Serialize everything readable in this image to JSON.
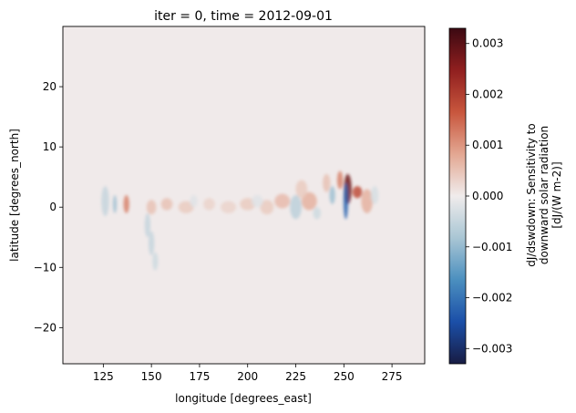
{
  "chart_data": {
    "type": "heatmap",
    "title": "iter = 0, time = 2012-09-01",
    "xlabel": "longitude [degrees_east]",
    "ylabel": "latitude [degrees_north]",
    "xlim": [
      104,
      292
    ],
    "ylim": [
      -26,
      30
    ],
    "xticks": [
      125,
      150,
      175,
      200,
      225,
      250,
      275
    ],
    "yticks": [
      -20,
      -10,
      0,
      10,
      20
    ],
    "grid": false,
    "colorbar": {
      "label_lines": [
        "dJ/dswdown: Sensitivity to",
        "downward solar radiation",
        "[dJ/(W m-2)]"
      ],
      "range": [
        -0.0033,
        0.0033
      ],
      "ticks": [
        -0.003,
        -0.002,
        -0.001,
        0.0,
        0.001,
        0.002,
        0.003
      ],
      "tick_labels": [
        "−0.003",
        "−0.002",
        "−0.001",
        "0.000",
        "0.001",
        "0.002",
        "0.003"
      ],
      "colormap": "balance",
      "colors": [
        "#181c43",
        "#1b4fa8",
        "#4b8fbf",
        "#a9c6d4",
        "#f0ecec",
        "#e3a792",
        "#c8563d",
        "#901f1f",
        "#3c0912"
      ]
    },
    "background_value": 2e-05,
    "features": [
      {
        "lon": 252,
        "lat": 3,
        "value": 0.0028,
        "extent_lon": 2.0,
        "extent_lat": 2.5
      },
      {
        "lon": 251,
        "lat": 1,
        "value": -0.0022,
        "extent_lon": 1.2,
        "extent_lat": 3.0
      },
      {
        "lon": 257,
        "lat": 2.5,
        "value": 0.0018,
        "extent_lon": 2.5,
        "extent_lat": 1.0
      },
      {
        "lon": 248,
        "lat": 4.5,
        "value": 0.0012,
        "extent_lon": 1.5,
        "extent_lat": 1.5
      },
      {
        "lon": 244,
        "lat": 2,
        "value": -0.0009,
        "extent_lon": 1.5,
        "extent_lat": 1.5
      },
      {
        "lon": 262,
        "lat": 1,
        "value": 0.0007,
        "extent_lon": 3.0,
        "extent_lat": 2.0
      },
      {
        "lon": 232,
        "lat": 1,
        "value": 0.0007,
        "extent_lon": 4.0,
        "extent_lat": 1.5
      },
      {
        "lon": 225,
        "lat": 0,
        "value": -0.0006,
        "extent_lon": 3.0,
        "extent_lat": 2.0
      },
      {
        "lon": 218,
        "lat": 1,
        "value": 0.0006,
        "extent_lon": 4.0,
        "extent_lat": 1.2
      },
      {
        "lon": 210,
        "lat": 0,
        "value": 0.0004,
        "extent_lon": 3.5,
        "extent_lat": 1.2
      },
      {
        "lon": 200,
        "lat": 0.5,
        "value": 0.0004,
        "extent_lon": 4.0,
        "extent_lat": 1.0
      },
      {
        "lon": 190,
        "lat": 0,
        "value": 0.0003,
        "extent_lon": 4.0,
        "extent_lat": 1.0
      },
      {
        "lon": 180,
        "lat": 0.5,
        "value": 0.0003,
        "extent_lon": 3.0,
        "extent_lat": 1.0
      },
      {
        "lon": 168,
        "lat": 0,
        "value": 0.0004,
        "extent_lon": 4.0,
        "extent_lat": 1.0
      },
      {
        "lon": 158,
        "lat": 0.5,
        "value": 0.0005,
        "extent_lon": 3.0,
        "extent_lat": 1.0
      },
      {
        "lon": 150,
        "lat": 0,
        "value": 0.0005,
        "extent_lon": 2.5,
        "extent_lat": 1.2
      },
      {
        "lon": 137,
        "lat": 0.5,
        "value": 0.0012,
        "extent_lon": 1.5,
        "extent_lat": 1.5
      },
      {
        "lon": 131,
        "lat": 0.5,
        "value": -0.0009,
        "extent_lon": 1.0,
        "extent_lat": 1.5
      },
      {
        "lon": 126,
        "lat": 1,
        "value": -0.0005,
        "extent_lon": 2.0,
        "extent_lat": 2.5
      },
      {
        "lon": 148,
        "lat": -3,
        "value": -0.0005,
        "extent_lon": 1.5,
        "extent_lat": 2.0
      },
      {
        "lon": 150,
        "lat": -6,
        "value": -0.0005,
        "extent_lon": 1.5,
        "extent_lat": 2.0
      },
      {
        "lon": 152,
        "lat": -9,
        "value": -0.0004,
        "extent_lon": 1.5,
        "extent_lat": 1.5
      },
      {
        "lon": 241,
        "lat": 4,
        "value": 0.0005,
        "extent_lon": 2.0,
        "extent_lat": 1.5
      },
      {
        "lon": 236,
        "lat": -1,
        "value": -0.0004,
        "extent_lon": 2.0,
        "extent_lat": 1.0
      },
      {
        "lon": 228,
        "lat": 3,
        "value": 0.0004,
        "extent_lon": 3.0,
        "extent_lat": 1.5
      },
      {
        "lon": 266,
        "lat": 2,
        "value": -0.0003,
        "extent_lon": 2.0,
        "extent_lat": 1.5
      },
      {
        "lon": 205,
        "lat": 1,
        "value": -0.0002,
        "extent_lon": 3.0,
        "extent_lat": 1.0
      },
      {
        "lon": 172,
        "lat": 1,
        "value": -0.0002,
        "extent_lon": 2.0,
        "extent_lat": 1.0
      }
    ]
  }
}
